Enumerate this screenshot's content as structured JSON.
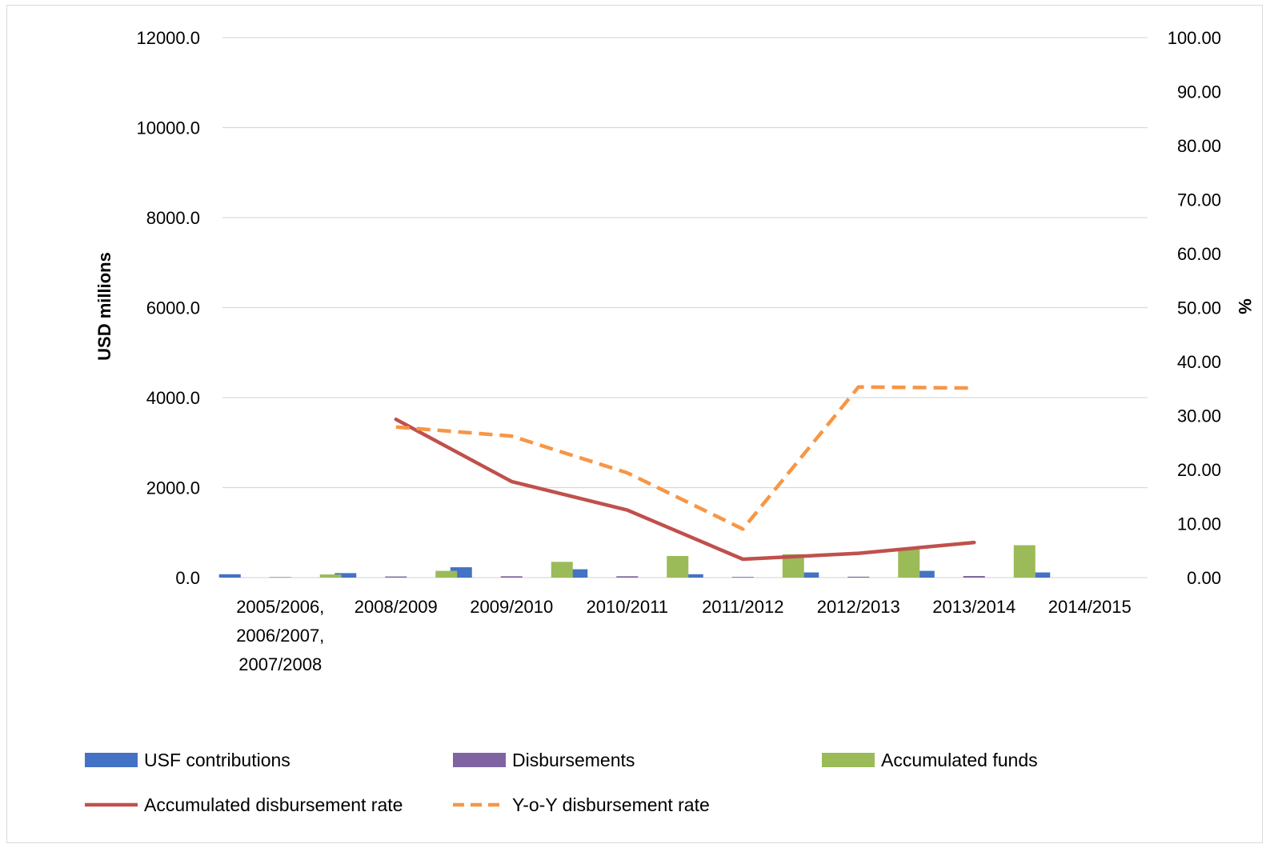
{
  "chart_data": {
    "type": "bar",
    "categories": [
      [
        "2005/2006,",
        "2006/2007,",
        "2007/2008"
      ],
      [
        "2008/2009"
      ],
      [
        "2009/2010"
      ],
      [
        "2010/2011"
      ],
      [
        "2011/2012"
      ],
      [
        "2012/2013"
      ],
      [
        "2013/2014"
      ],
      [
        "2014/2015"
      ]
    ],
    "ylabel": "USD millions",
    "y2label": "%",
    "ylim": [
      0,
      12000
    ],
    "y2lim": [
      0,
      100
    ],
    "yticks": [
      "0.0",
      "2000.0",
      "4000.0",
      "6000.0",
      "8000.0",
      "10000.0",
      "12000.0"
    ],
    "y2ticks": [
      "0.00",
      "10.00",
      "20.00",
      "30.00",
      "40.00",
      "50.00",
      "60.00",
      "70.00",
      "80.00",
      "90.00",
      "100.00"
    ],
    "grid": true,
    "legend_position": "bottom",
    "series": [
      {
        "name": "USF contributions",
        "kind": "bar",
        "axis": "left",
        "color": "#4472C4",
        "values": [
          75,
          100,
          230,
          185,
          75,
          115,
          150,
          115
        ]
      },
      {
        "name": "Disbursements",
        "kind": "bar",
        "axis": "left",
        "color": "#8064A2",
        "values": [
          10,
          25,
          30,
          30,
          15,
          20,
          35,
          null
        ]
      },
      {
        "name": "Accumulated funds",
        "kind": "bar",
        "axis": "left",
        "color": "#9BBB59",
        "values": [
          70,
          150,
          350,
          480,
          520,
          630,
          720,
          null
        ]
      },
      {
        "name": "Accumulated disbursement rate",
        "kind": "line",
        "axis": "right",
        "color": "#C0504D",
        "dash": false,
        "values": [
          null,
          29.3,
          17.8,
          12.5,
          3.4,
          4.5,
          6.5,
          null
        ]
      },
      {
        "name": "Y-o-Y disbursement rate",
        "kind": "line",
        "axis": "right",
        "color": "#F79646",
        "dash": true,
        "values": [
          null,
          27.9,
          26.2,
          19.4,
          9.0,
          35.3,
          35.1,
          null
        ]
      }
    ]
  }
}
